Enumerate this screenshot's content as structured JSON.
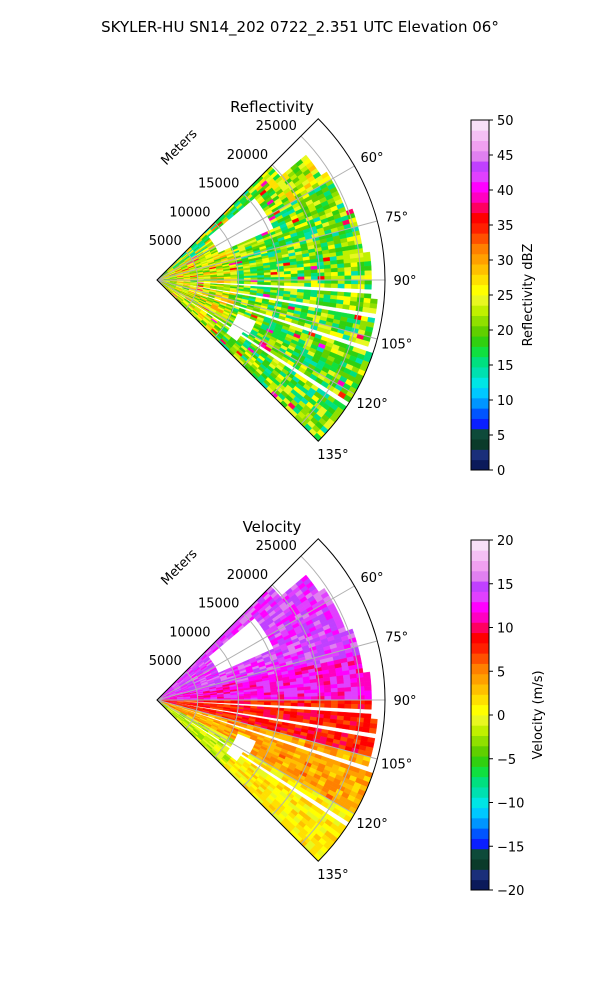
{
  "figure_title": "SKYLER-HU  SN14_202  0722_2.351 UTC Elevation 06°",
  "chart_data": [
    {
      "type": "heatmap",
      "title": "Reflectivity",
      "radial_axis_label": "Meters",
      "range_ticks": [
        "5000",
        "10000",
        "15000",
        "20000",
        "25000"
      ],
      "azimuth_ticks": [
        "60°",
        "75°",
        "90°",
        "105°",
        "120°",
        "135°"
      ],
      "azimuth_range_deg": [
        45,
        135
      ],
      "range_limits_m": [
        0,
        28000
      ],
      "grid": true,
      "colorbar": {
        "label": "Reflectivity dBZ",
        "limits": [
          0,
          50
        ],
        "ticks": [
          "0",
          "5",
          "10",
          "15",
          "20",
          "25",
          "30",
          "35",
          "40",
          "45",
          "50"
        ],
        "colors": [
          "#0b1a5a",
          "#1a2f7a",
          "#0b3a2a",
          "#0e4a3a",
          "#0a1fff",
          "#0055ff",
          "#0095ff",
          "#00c8ff",
          "#00e5e5",
          "#00e0b0",
          "#00e080",
          "#10e040",
          "#30d010",
          "#60d000",
          "#90e000",
          "#c0f000",
          "#e8f820",
          "#ffff00",
          "#ffe000",
          "#ffc000",
          "#ffa000",
          "#ff8000",
          "#ff5000",
          "#ff2000",
          "#ff0000",
          "#ff0060",
          "#ff00c0",
          "#ff00ff",
          "#e040ff",
          "#c040ff",
          "#e080f0",
          "#f0a0f0",
          "#f4c0f4",
          "#f8e0f8"
        ]
      }
    },
    {
      "type": "heatmap",
      "title": "Velocity",
      "radial_axis_label": "Meters",
      "range_ticks": [
        "5000",
        "10000",
        "15000",
        "20000",
        "25000"
      ],
      "azimuth_ticks": [
        "60°",
        "75°",
        "90°",
        "105°",
        "120°",
        "135°"
      ],
      "azimuth_range_deg": [
        45,
        135
      ],
      "range_limits_m": [
        0,
        28000
      ],
      "grid": true,
      "colorbar": {
        "label": "Velocity (m/s)",
        "limits": [
          -20,
          20
        ],
        "ticks": [
          "−20",
          "−15",
          "−10",
          "−5",
          "0",
          "5",
          "10",
          "15",
          "20"
        ],
        "colors": [
          "#0b1a5a",
          "#1a2f7a",
          "#0b3a2a",
          "#0e4a3a",
          "#0a1fff",
          "#0055ff",
          "#0095ff",
          "#00c8ff",
          "#00e5e5",
          "#00e0b0",
          "#00e080",
          "#10e040",
          "#30d010",
          "#60d000",
          "#90e000",
          "#c0f000",
          "#e8f820",
          "#ffff00",
          "#ffe000",
          "#ffc000",
          "#ffa000",
          "#ff8000",
          "#ff5000",
          "#ff2000",
          "#ff0000",
          "#ff0060",
          "#ff00c0",
          "#ff00ff",
          "#e040ff",
          "#c040ff",
          "#e080f0",
          "#f0a0f0",
          "#f4c0f4",
          "#f8e0f8"
        ]
      }
    }
  ]
}
